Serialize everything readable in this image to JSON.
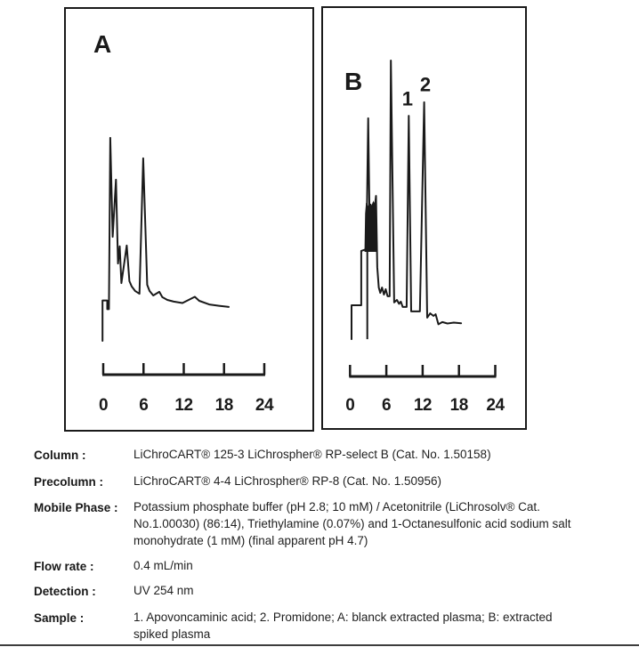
{
  "figure": {
    "description": "Two scanned HPLC chromatograms, panels A and B, with time axes 0-24",
    "panel_a_name": "A",
    "panel_b_name": "B"
  },
  "chart_data": [
    {
      "type": "line",
      "panel_label": "A",
      "series_name": "A: blanck extracted plasma",
      "xlim": [
        0,
        24
      ],
      "x_ticks": [
        "0",
        "6",
        "12",
        "18",
        "24"
      ],
      "x_tick_values": [
        0,
        6,
        12,
        18,
        24
      ],
      "ylabel": "",
      "xlabel": "",
      "grid": false,
      "legend": false,
      "trace": [
        [
          -0.1,
          0
        ],
        [
          -0.1,
          14.4
        ],
        [
          0.6,
          14.4
        ],
        [
          0.6,
          11.3
        ],
        [
          0.85,
          11.3
        ],
        [
          1.05,
          72.4
        ],
        [
          1.4,
          37.1
        ],
        [
          1.9,
          57.5
        ],
        [
          2.2,
          27.6
        ],
        [
          2.45,
          33.7
        ],
        [
          2.7,
          20.6
        ],
        [
          3.5,
          34.0
        ],
        [
          3.9,
          21.3
        ],
        [
          4.25,
          19.4
        ],
        [
          4.75,
          17.8
        ],
        [
          5.4,
          16.8
        ],
        [
          5.95,
          65.1
        ],
        [
          6.55,
          20.0
        ],
        [
          6.9,
          17.8
        ],
        [
          7.45,
          16.2
        ],
        [
          8.35,
          17.5
        ],
        [
          8.8,
          15.6
        ],
        [
          9.55,
          14.6
        ],
        [
          10.5,
          14.0
        ],
        [
          11.8,
          13.5
        ],
        [
          13.65,
          15.7
        ],
        [
          14.3,
          14.3
        ],
        [
          15.8,
          13.0
        ],
        [
          17.25,
          12.5
        ],
        [
          18.7,
          12.1
        ]
      ],
      "peak_labels": [],
      "pen_drop": [],
      "solvent_blob": []
    },
    {
      "type": "line",
      "panel_label": "B",
      "series_name": "B: extracted spiked plasma",
      "xlim": [
        0,
        24
      ],
      "x_ticks": [
        "0",
        "6",
        "12",
        "18",
        "24"
      ],
      "x_tick_values": [
        0,
        6,
        12,
        18,
        24
      ],
      "ylabel": "",
      "xlabel": "",
      "grid": false,
      "legend": false,
      "trace": [
        [
          0.25,
          0.6
        ],
        [
          0.25,
          12.7
        ],
        [
          1.85,
          12.7
        ],
        [
          1.85,
          32.1
        ],
        [
          2.7,
          32.7
        ],
        [
          3.0,
          79.4
        ],
        [
          3.2,
          47.0
        ],
        [
          3.4,
          48.6
        ],
        [
          3.6,
          46.3
        ],
        [
          3.85,
          49.2
        ],
        [
          4.05,
          46.7
        ],
        [
          4.3,
          51.7
        ],
        [
          4.5,
          26.3
        ],
        [
          4.75,
          19.0
        ],
        [
          5.0,
          17.1
        ],
        [
          5.3,
          19.0
        ],
        [
          5.6,
          16.5
        ],
        [
          5.9,
          18.4
        ],
        [
          6.2,
          15.9
        ],
        [
          6.55,
          15.9
        ],
        [
          6.75,
          100
        ],
        [
          7.3,
          13.7
        ],
        [
          7.75,
          14.6
        ],
        [
          8.1,
          13.2
        ],
        [
          8.4,
          14.0
        ],
        [
          8.7,
          12.1
        ],
        [
          9.35,
          12.1
        ],
        [
          9.7,
          80.3
        ],
        [
          10.1,
          10.5
        ],
        [
          11.55,
          10.5
        ],
        [
          12.25,
          85.1
        ],
        [
          12.75,
          8.3
        ],
        [
          13.25,
          9.8
        ],
        [
          13.8,
          8.9
        ],
        [
          14.15,
          9.5
        ],
        [
          14.6,
          5.9
        ],
        [
          15.25,
          6.7
        ],
        [
          16.1,
          6.2
        ],
        [
          17.15,
          6.5
        ],
        [
          18.35,
          6.3
        ]
      ],
      "peak_labels": [
        {
          "text": "1",
          "t": 9.5,
          "r": 84
        },
        {
          "text": "2",
          "t": 12.45,
          "r": 89
        }
      ],
      "pen_drop": [
        [
          2.85,
          32.7
        ],
        [
          2.85,
          0.6
        ]
      ],
      "solvent_blob": [
        [
          2.5,
          32
        ],
        [
          2.6,
          45.4
        ],
        [
          2.75,
          49.2
        ],
        [
          3.0,
          47.3
        ],
        [
          3.2,
          48.6
        ],
        [
          3.4,
          46.0
        ],
        [
          3.6,
          47.9
        ],
        [
          3.85,
          49.2
        ],
        [
          4.05,
          46.7
        ],
        [
          4.25,
          47.9
        ],
        [
          4.45,
          32
        ]
      ]
    }
  ],
  "details": {
    "rows": [
      {
        "label": "Column :",
        "lines": [
          "LiChroCART® 125-3 LiChrospher® RP-select B  (Cat. No. 1.50158)"
        ]
      },
      {
        "label": "Precolumn :",
        "lines": [
          "LiChroCART® 4-4 LiChrospher® RP-8  (Cat. No. 1.50956)"
        ]
      },
      {
        "label": "Mobile Phase :",
        "lines": [
          "Potassium phosphate buffer (pH 2.8; 10 mM) / Acetonitrile (LiChrosolv® Cat.",
          "No.1.00030) (86:14), Triethylamine (0.07%) and 1-Octanesulfonic acid sodium salt",
          "monohydrate (1 mM) (final apparent pH 4.7)"
        ]
      },
      {
        "label": "Flow rate :",
        "lines": [
          "0.4 mL/min"
        ]
      },
      {
        "label": "Detection :",
        "lines": [
          "UV 254 nm"
        ]
      },
      {
        "label": "Sample :",
        "lines": [
          "1. Apovoncaminic acid; 2. Promidone; A: blanck extracted plasma; B: extracted",
          "spiked plasma"
        ]
      }
    ]
  }
}
